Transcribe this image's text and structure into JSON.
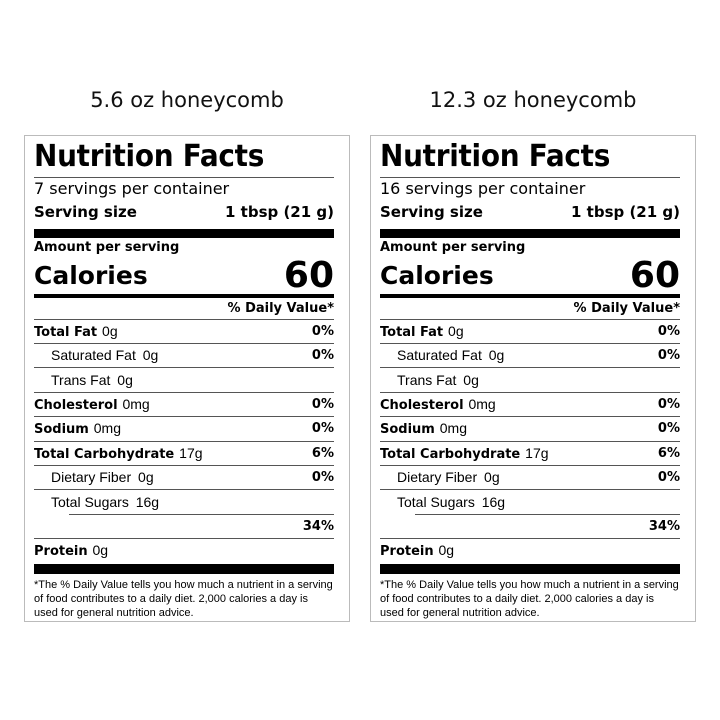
{
  "labels": [
    {
      "caption": "5.6 oz honeycomb",
      "title": "Nutrition Facts",
      "servings": "7 servings per container",
      "serving_size_label": "Serving size",
      "serving_size": "1 tbsp (21 g)",
      "amount_per_serving": "Amount per serving",
      "calories_label": "Calories",
      "calories": "60",
      "dv_header": "% Daily Value*",
      "rows": [
        {
          "name": "Total Fat",
          "value": "0g",
          "dv": "0%",
          "bold": true,
          "indent": false
        },
        {
          "name": "Saturated Fat",
          "value": "0g",
          "dv": "0%",
          "bold": false,
          "indent": true
        },
        {
          "name": "Trans Fat",
          "value": "0g",
          "dv": "",
          "bold": false,
          "indent": true
        },
        {
          "name": "Cholesterol",
          "value": "0mg",
          "dv": "0%",
          "bold": true,
          "indent": false
        },
        {
          "name": "Sodium",
          "value": "0mg",
          "dv": "0%",
          "bold": true,
          "indent": false
        },
        {
          "name": "Total Carbohydrate",
          "value": "17g",
          "dv": "6%",
          "bold": true,
          "indent": false
        },
        {
          "name": "Dietary Fiber",
          "value": "0g",
          "dv": "0%",
          "bold": false,
          "indent": true
        },
        {
          "name": "Total Sugars",
          "value": "16g",
          "dv": "",
          "bold": false,
          "indent": true
        },
        {
          "name": "",
          "value": "",
          "dv": "34%",
          "bold": false,
          "indent": true
        },
        {
          "name": "Protein",
          "value": "0g",
          "dv": "",
          "bold": true,
          "indent": false
        }
      ],
      "footnote": "*The % Daily Value tells you how much a nutrient in a serving of food contributes to a daily diet. 2,000 calories a day is used for general nutrition advice."
    },
    {
      "caption": "12.3 oz honeycomb",
      "title": "Nutrition Facts",
      "servings": "16 servings per container",
      "serving_size_label": "Serving size",
      "serving_size": "1 tbsp (21 g)",
      "amount_per_serving": "Amount per serving",
      "calories_label": "Calories",
      "calories": "60",
      "dv_header": "% Daily Value*",
      "rows": [
        {
          "name": "Total Fat",
          "value": "0g",
          "dv": "0%",
          "bold": true,
          "indent": false
        },
        {
          "name": "Saturated Fat",
          "value": "0g",
          "dv": "0%",
          "bold": false,
          "indent": true
        },
        {
          "name": "Trans Fat",
          "value": "0g",
          "dv": "",
          "bold": false,
          "indent": true
        },
        {
          "name": "Cholesterol",
          "value": "0mg",
          "dv": "0%",
          "bold": true,
          "indent": false
        },
        {
          "name": "Sodium",
          "value": "0mg",
          "dv": "0%",
          "bold": true,
          "indent": false
        },
        {
          "name": "Total Carbohydrate",
          "value": "17g",
          "dv": "6%",
          "bold": true,
          "indent": false
        },
        {
          "name": "Dietary Fiber",
          "value": "0g",
          "dv": "0%",
          "bold": false,
          "indent": true
        },
        {
          "name": "Total Sugars",
          "value": "16g",
          "dv": "",
          "bold": false,
          "indent": true
        },
        {
          "name": "",
          "value": "",
          "dv": "34%",
          "bold": false,
          "indent": true
        },
        {
          "name": "Protein",
          "value": "0g",
          "dv": "",
          "bold": true,
          "indent": false
        }
      ],
      "footnote": "*The % Daily Value tells you how much a nutrient in a serving of food contributes to a daily diet. 2,000 calories a day is used for general nutrition advice."
    }
  ]
}
